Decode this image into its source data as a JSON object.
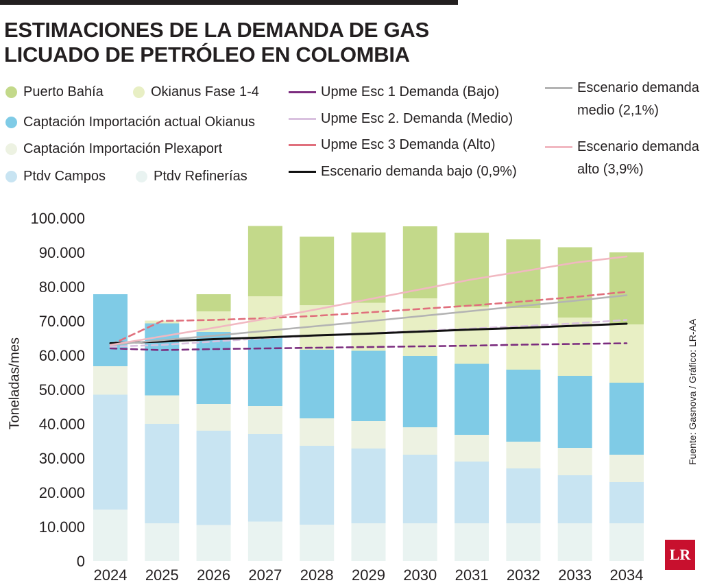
{
  "title": "ESTIMACIONES DE LA DEMANDA DE GAS LICUADO DE PETRÓLEO EN COLOMBIA",
  "source": "Fuente: Gasnova / Gráfico: LR-AA",
  "logo_text": "LR",
  "legend": {
    "puerto_bahia": "Puerto Bahía",
    "okianus_fase": "Okianus Fase 1-4",
    "captacion_okianus": "Captación Importación actual Okianus",
    "captacion_plexaport": "Captación Importación  Plexaport",
    "ptdv_campos": "Ptdv Campos",
    "ptdv_refinerias": "Ptdv Refinerías",
    "upme1": "Upme Esc 1 Demanda (Bajo)",
    "upme2": "Upme Esc 2. Demanda (Medio)",
    "upme3": "Upme Esc 3 Demanda (Alto)",
    "esc_bajo": "Escenario demanda bajo (0,9%)",
    "esc_medio": "Escenario demanda medio (2,1%)",
    "esc_alto": "Escenario demanda alto (3,9%)"
  },
  "colors": {
    "ptdv_refinerias": "#e9f3f1",
    "ptdv_campos": "#c8e4f2",
    "captacion_plexaport": "#edf2e2",
    "captacion_okianus": "#7fcbe6",
    "okianus_fase": "#e8efc4",
    "puerto_bahia": "#c3d98a",
    "upme1": "#7b2c7e",
    "upme2": "#d9c1df",
    "upme3": "#e06f7c",
    "esc_bajo": "#111111",
    "esc_medio": "#b3b3b3",
    "esc_alto": "#f1b8c1"
  },
  "chart_data": {
    "type": "bar",
    "stacked": true,
    "ylabel": "Toneladas/mes",
    "ylim": [
      0,
      100000
    ],
    "yticks": [
      "0",
      "10.000",
      "20.000",
      "30.000",
      "40.000",
      "50.000",
      "60.000",
      "70.000",
      "80.000",
      "90.000",
      "100.000"
    ],
    "categories": [
      "2024",
      "2025",
      "2026",
      "2027",
      "2028",
      "2029",
      "2030",
      "2031",
      "2032",
      "2033",
      "2034"
    ],
    "series": [
      {
        "key": "ptdv_refinerias",
        "name": "Ptdv Refinerías",
        "values": [
          15000,
          11000,
          10500,
          11500,
          10600,
          11000,
          11000,
          11000,
          11000,
          11000,
          11000
        ]
      },
      {
        "key": "ptdv_campos",
        "name": "Ptdv Campos",
        "values": [
          33500,
          29000,
          27500,
          25500,
          23000,
          21800,
          20000,
          18000,
          16000,
          14000,
          12000
        ]
      },
      {
        "key": "captacion_plexaport",
        "name": "Captación Importación  Plexaport",
        "values": [
          8300,
          8300,
          7800,
          8200,
          8000,
          8000,
          8000,
          7800,
          7800,
          8000,
          8000
        ]
      },
      {
        "key": "captacion_okianus",
        "name": "Captación Importación actual Okianus",
        "values": [
          21000,
          21000,
          21000,
          20000,
          20000,
          20500,
          20800,
          20700,
          21000,
          21000,
          21000
        ]
      },
      {
        "key": "okianus_fase",
        "name": "Okianus Fase 1-4",
        "values": [
          0,
          800,
          6000,
          12000,
          13000,
          14000,
          16800,
          16700,
          18000,
          17000,
          17000
        ]
      },
      {
        "key": "puerto_bahia",
        "name": "Puerto Bahía",
        "values": [
          0,
          0,
          5000,
          20500,
          20000,
          20500,
          21000,
          21500,
          20000,
          20500,
          21000
        ]
      }
    ],
    "lines": [
      {
        "key": "upme1",
        "name": "Upme Esc 1 Demanda (Bajo)",
        "dashed": true,
        "values": [
          62000,
          61500,
          61800,
          62000,
          62200,
          62400,
          62600,
          62800,
          63100,
          63300,
          63500
        ]
      },
      {
        "key": "upme2",
        "name": "Upme Esc 2. Demanda (Medio)",
        "dashed": true,
        "values": [
          62500,
          63000,
          64000,
          65000,
          65700,
          66400,
          67100,
          67800,
          68500,
          69300,
          70300
        ]
      },
      {
        "key": "upme3",
        "name": "Upme Esc 3 Demanda (Alto)",
        "dashed": true,
        "values": [
          63000,
          70000,
          70300,
          70800,
          71500,
          72500,
          73500,
          74500,
          75700,
          77000,
          78500
        ]
      },
      {
        "key": "esc_bajo",
        "name": "Escenario demanda bajo (0,9%)",
        "dashed": false,
        "values": [
          63500,
          64000,
          64700,
          65200,
          65800,
          66300,
          66900,
          67500,
          68000,
          68600,
          69200
        ]
      },
      {
        "key": "esc_medio",
        "name": "Escenario demanda medio (2,1%)",
        "dashed": false,
        "values": [
          63000,
          64400,
          65700,
          67100,
          68500,
          69900,
          71400,
          72900,
          74400,
          75900,
          77500
        ]
      },
      {
        "key": "esc_alto",
        "name": "Escenario demanda alto (3,9%)",
        "dashed": false,
        "values": [
          63000,
          65500,
          68000,
          70600,
          73400,
          76300,
          79200,
          82100,
          84500,
          87000,
          88800
        ]
      }
    ]
  }
}
